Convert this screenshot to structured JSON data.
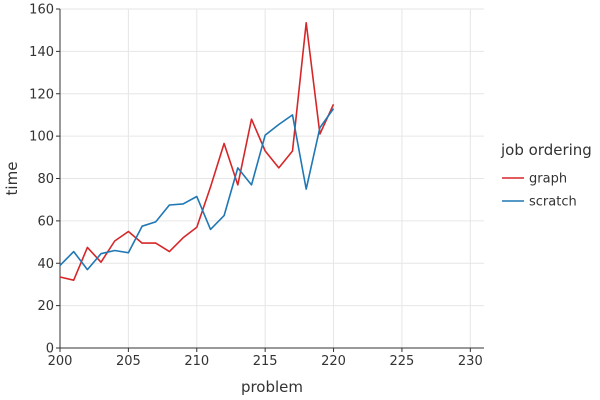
{
  "chart_data": {
    "type": "line",
    "xlabel": "problem",
    "ylabel": "time",
    "xlim": [
      200,
      231
    ],
    "ylim": [
      0,
      160
    ],
    "x_ticks": [
      200,
      205,
      210,
      215,
      220,
      225,
      230
    ],
    "y_ticks": [
      0,
      20,
      40,
      60,
      80,
      100,
      120,
      140,
      160
    ],
    "grid": true,
    "legend": {
      "title": "job ordering",
      "placement": "right"
    },
    "series": [
      {
        "name": "graph",
        "color": "#d62728",
        "x": [
          200,
          201,
          202,
          203,
          204,
          205,
          206,
          207,
          208,
          209,
          210,
          211,
          212,
          213,
          214,
          215,
          216,
          217,
          218,
          219,
          220
        ],
        "y": [
          33.5,
          32,
          47.5,
          40.5,
          50.5,
          55,
          49.5,
          49.5,
          45.5,
          52,
          57,
          76,
          96.5,
          77,
          108,
          93,
          85,
          93,
          153.5,
          101,
          115
        ]
      },
      {
        "name": "scratch",
        "color": "#1f77b4",
        "x": [
          200,
          201,
          202,
          203,
          204,
          205,
          206,
          207,
          208,
          209,
          210,
          211,
          212,
          213,
          214,
          215,
          216,
          217,
          218,
          219,
          220
        ],
        "y": [
          39,
          45.5,
          37,
          44.5,
          46,
          45,
          57.5,
          59.5,
          67.5,
          68,
          71.5,
          56,
          62.5,
          85,
          77,
          100.5,
          105.5,
          110,
          75,
          104,
          113
        ]
      }
    ]
  }
}
